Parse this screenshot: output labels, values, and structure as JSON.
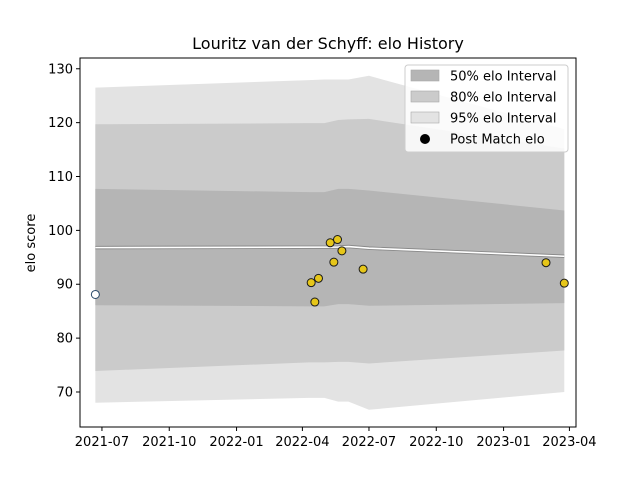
{
  "chart_data": {
    "type": "line",
    "title": "Louritz van der Schyff: elo History",
    "xlabel": "",
    "ylabel": "elo score",
    "xlim": [
      "2021-06-01",
      "2023-04-10"
    ],
    "ylim": [
      63.5,
      132
    ],
    "x_ticks": [
      "2021-07",
      "2021-10",
      "2022-01",
      "2022-04",
      "2022-07",
      "2022-10",
      "2023-01",
      "2023-04"
    ],
    "y_ticks": [
      70,
      80,
      90,
      100,
      110,
      120,
      130
    ],
    "grid": false,
    "legend": {
      "position": "top-right",
      "entries": [
        "50% elo Interval",
        "80% elo Interval",
        "95% elo Interval",
        "Post Match elo"
      ]
    },
    "colors": {
      "band50": "#b5b5b5",
      "band80": "#cbcbcb",
      "band95": "#e3e3e3",
      "mean_line": "#ffffff",
      "match_point": "#e6c619",
      "initial_point": "#ffffff",
      "point_edge": "#1a1a1a",
      "initial_edge": "#2a4a6a"
    },
    "bands": {
      "x": [
        "2021-06-22",
        "2022-04-10",
        "2022-05-01",
        "2022-05-20",
        "2022-06-03",
        "2022-07-01",
        "2023-03-25"
      ],
      "p95_upper": [
        126.5,
        127.9,
        128.0,
        128.0,
        128.0,
        128.7,
        118.8
      ],
      "p95_lower": [
        68.0,
        68.9,
        68.9,
        68.2,
        68.2,
        66.7,
        70.0
      ],
      "p80_upper": [
        119.7,
        119.9,
        119.9,
        120.5,
        120.6,
        120.7,
        115.2
      ],
      "p80_lower": [
        73.9,
        75.5,
        75.5,
        75.6,
        75.6,
        75.3,
        77.7
      ],
      "p50_upper": [
        107.7,
        107.1,
        107.1,
        107.7,
        107.7,
        107.4,
        103.7
      ],
      "p50_lower": [
        86.1,
        85.9,
        85.9,
        86.3,
        86.3,
        86.0,
        86.5
      ]
    },
    "mean_line": {
      "x": [
        "2021-06-22",
        "2022-05-20",
        "2022-06-03",
        "2022-07-01",
        "2023-03-25"
      ],
      "y": [
        96.8,
        96.9,
        97.0,
        96.7,
        95.2
      ]
    },
    "series": [
      {
        "name": "Post Match elo",
        "x": [
          "2022-04-13",
          "2022-04-18",
          "2022-04-23",
          "2022-05-09",
          "2022-05-14",
          "2022-05-19",
          "2022-05-25",
          "2022-06-23",
          "2023-02-28",
          "2023-03-25"
        ],
        "y": [
          90.3,
          86.7,
          91.1,
          97.7,
          94.1,
          98.3,
          96.2,
          92.8,
          94.0,
          90.2
        ]
      }
    ],
    "initial_point": {
      "x": "2021-06-22",
      "y": 88.1
    }
  }
}
